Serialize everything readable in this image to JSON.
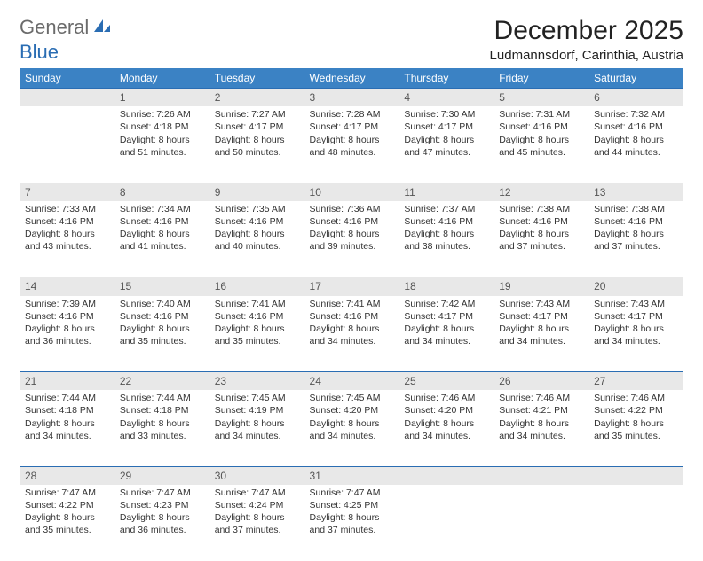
{
  "brand": {
    "gray": "General",
    "blue": "Blue"
  },
  "title": "December 2025",
  "location": "Ludmannsdorf, Carinthia, Austria",
  "colors": {
    "header_bg": "#3b82c4",
    "header_text": "#ffffff",
    "daynum_bg": "#e8e8e8",
    "daynum_border": "#2a6db3",
    "body_text": "#333333",
    "logo_gray": "#6b6b6b",
    "logo_blue": "#2a6db3"
  },
  "day_headers": [
    "Sunday",
    "Monday",
    "Tuesday",
    "Wednesday",
    "Thursday",
    "Friday",
    "Saturday"
  ],
  "weeks": [
    {
      "nums": [
        "",
        "1",
        "2",
        "3",
        "4",
        "5",
        "6"
      ],
      "cells": [
        {
          "sunrise": "",
          "sunset": "",
          "daylight1": "",
          "daylight2": ""
        },
        {
          "sunrise": "Sunrise: 7:26 AM",
          "sunset": "Sunset: 4:18 PM",
          "daylight1": "Daylight: 8 hours",
          "daylight2": "and 51 minutes."
        },
        {
          "sunrise": "Sunrise: 7:27 AM",
          "sunset": "Sunset: 4:17 PM",
          "daylight1": "Daylight: 8 hours",
          "daylight2": "and 50 minutes."
        },
        {
          "sunrise": "Sunrise: 7:28 AM",
          "sunset": "Sunset: 4:17 PM",
          "daylight1": "Daylight: 8 hours",
          "daylight2": "and 48 minutes."
        },
        {
          "sunrise": "Sunrise: 7:30 AM",
          "sunset": "Sunset: 4:17 PM",
          "daylight1": "Daylight: 8 hours",
          "daylight2": "and 47 minutes."
        },
        {
          "sunrise": "Sunrise: 7:31 AM",
          "sunset": "Sunset: 4:16 PM",
          "daylight1": "Daylight: 8 hours",
          "daylight2": "and 45 minutes."
        },
        {
          "sunrise": "Sunrise: 7:32 AM",
          "sunset": "Sunset: 4:16 PM",
          "daylight1": "Daylight: 8 hours",
          "daylight2": "and 44 minutes."
        }
      ]
    },
    {
      "nums": [
        "7",
        "8",
        "9",
        "10",
        "11",
        "12",
        "13"
      ],
      "cells": [
        {
          "sunrise": "Sunrise: 7:33 AM",
          "sunset": "Sunset: 4:16 PM",
          "daylight1": "Daylight: 8 hours",
          "daylight2": "and 43 minutes."
        },
        {
          "sunrise": "Sunrise: 7:34 AM",
          "sunset": "Sunset: 4:16 PM",
          "daylight1": "Daylight: 8 hours",
          "daylight2": "and 41 minutes."
        },
        {
          "sunrise": "Sunrise: 7:35 AM",
          "sunset": "Sunset: 4:16 PM",
          "daylight1": "Daylight: 8 hours",
          "daylight2": "and 40 minutes."
        },
        {
          "sunrise": "Sunrise: 7:36 AM",
          "sunset": "Sunset: 4:16 PM",
          "daylight1": "Daylight: 8 hours",
          "daylight2": "and 39 minutes."
        },
        {
          "sunrise": "Sunrise: 7:37 AM",
          "sunset": "Sunset: 4:16 PM",
          "daylight1": "Daylight: 8 hours",
          "daylight2": "and 38 minutes."
        },
        {
          "sunrise": "Sunrise: 7:38 AM",
          "sunset": "Sunset: 4:16 PM",
          "daylight1": "Daylight: 8 hours",
          "daylight2": "and 37 minutes."
        },
        {
          "sunrise": "Sunrise: 7:38 AM",
          "sunset": "Sunset: 4:16 PM",
          "daylight1": "Daylight: 8 hours",
          "daylight2": "and 37 minutes."
        }
      ]
    },
    {
      "nums": [
        "14",
        "15",
        "16",
        "17",
        "18",
        "19",
        "20"
      ],
      "cells": [
        {
          "sunrise": "Sunrise: 7:39 AM",
          "sunset": "Sunset: 4:16 PM",
          "daylight1": "Daylight: 8 hours",
          "daylight2": "and 36 minutes."
        },
        {
          "sunrise": "Sunrise: 7:40 AM",
          "sunset": "Sunset: 4:16 PM",
          "daylight1": "Daylight: 8 hours",
          "daylight2": "and 35 minutes."
        },
        {
          "sunrise": "Sunrise: 7:41 AM",
          "sunset": "Sunset: 4:16 PM",
          "daylight1": "Daylight: 8 hours",
          "daylight2": "and 35 minutes."
        },
        {
          "sunrise": "Sunrise: 7:41 AM",
          "sunset": "Sunset: 4:16 PM",
          "daylight1": "Daylight: 8 hours",
          "daylight2": "and 34 minutes."
        },
        {
          "sunrise": "Sunrise: 7:42 AM",
          "sunset": "Sunset: 4:17 PM",
          "daylight1": "Daylight: 8 hours",
          "daylight2": "and 34 minutes."
        },
        {
          "sunrise": "Sunrise: 7:43 AM",
          "sunset": "Sunset: 4:17 PM",
          "daylight1": "Daylight: 8 hours",
          "daylight2": "and 34 minutes."
        },
        {
          "sunrise": "Sunrise: 7:43 AM",
          "sunset": "Sunset: 4:17 PM",
          "daylight1": "Daylight: 8 hours",
          "daylight2": "and 34 minutes."
        }
      ]
    },
    {
      "nums": [
        "21",
        "22",
        "23",
        "24",
        "25",
        "26",
        "27"
      ],
      "cells": [
        {
          "sunrise": "Sunrise: 7:44 AM",
          "sunset": "Sunset: 4:18 PM",
          "daylight1": "Daylight: 8 hours",
          "daylight2": "and 34 minutes."
        },
        {
          "sunrise": "Sunrise: 7:44 AM",
          "sunset": "Sunset: 4:18 PM",
          "daylight1": "Daylight: 8 hours",
          "daylight2": "and 33 minutes."
        },
        {
          "sunrise": "Sunrise: 7:45 AM",
          "sunset": "Sunset: 4:19 PM",
          "daylight1": "Daylight: 8 hours",
          "daylight2": "and 34 minutes."
        },
        {
          "sunrise": "Sunrise: 7:45 AM",
          "sunset": "Sunset: 4:20 PM",
          "daylight1": "Daylight: 8 hours",
          "daylight2": "and 34 minutes."
        },
        {
          "sunrise": "Sunrise: 7:46 AM",
          "sunset": "Sunset: 4:20 PM",
          "daylight1": "Daylight: 8 hours",
          "daylight2": "and 34 minutes."
        },
        {
          "sunrise": "Sunrise: 7:46 AM",
          "sunset": "Sunset: 4:21 PM",
          "daylight1": "Daylight: 8 hours",
          "daylight2": "and 34 minutes."
        },
        {
          "sunrise": "Sunrise: 7:46 AM",
          "sunset": "Sunset: 4:22 PM",
          "daylight1": "Daylight: 8 hours",
          "daylight2": "and 35 minutes."
        }
      ]
    },
    {
      "nums": [
        "28",
        "29",
        "30",
        "31",
        "",
        "",
        ""
      ],
      "cells": [
        {
          "sunrise": "Sunrise: 7:47 AM",
          "sunset": "Sunset: 4:22 PM",
          "daylight1": "Daylight: 8 hours",
          "daylight2": "and 35 minutes."
        },
        {
          "sunrise": "Sunrise: 7:47 AM",
          "sunset": "Sunset: 4:23 PM",
          "daylight1": "Daylight: 8 hours",
          "daylight2": "and 36 minutes."
        },
        {
          "sunrise": "Sunrise: 7:47 AM",
          "sunset": "Sunset: 4:24 PM",
          "daylight1": "Daylight: 8 hours",
          "daylight2": "and 37 minutes."
        },
        {
          "sunrise": "Sunrise: 7:47 AM",
          "sunset": "Sunset: 4:25 PM",
          "daylight1": "Daylight: 8 hours",
          "daylight2": "and 37 minutes."
        },
        {
          "sunrise": "",
          "sunset": "",
          "daylight1": "",
          "daylight2": ""
        },
        {
          "sunrise": "",
          "sunset": "",
          "daylight1": "",
          "daylight2": ""
        },
        {
          "sunrise": "",
          "sunset": "",
          "daylight1": "",
          "daylight2": ""
        }
      ]
    }
  ]
}
